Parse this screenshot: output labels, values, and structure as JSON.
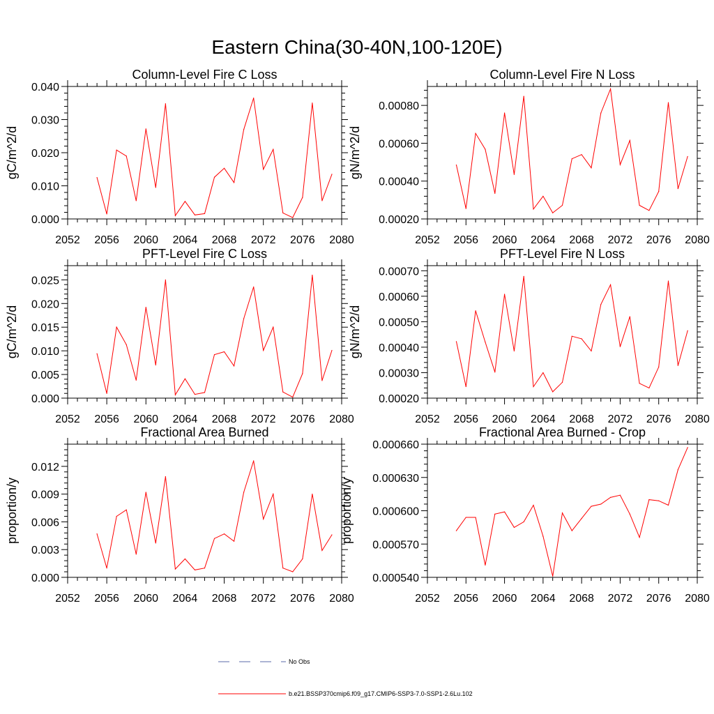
{
  "title": "Eastern China(30-40N,100-120E)",
  "chart_data": [
    {
      "type": "line",
      "title": "Column-Level Fire C Loss",
      "ylabel": "gC/m^2/d",
      "xlim": [
        2052,
        2080
      ],
      "ylim": [
        0,
        0.04
      ],
      "xticks": [
        "2052",
        "2056",
        "2060",
        "2064",
        "2068",
        "2072",
        "2076",
        "2080"
      ],
      "yticks": [
        "0.000",
        "0.010",
        "0.020",
        "0.030",
        "0.040"
      ],
      "series": [
        {
          "color": "#ff0000",
          "x": [
            2055,
            2056,
            2057,
            2058,
            2059,
            2060,
            2061,
            2062,
            2063,
            2064,
            2065,
            2066,
            2067,
            2068,
            2069,
            2070,
            2071,
            2072,
            2073,
            2074,
            2075,
            2076,
            2077,
            2078,
            2079
          ],
          "values": [
            0.0125,
            0.0015,
            0.0208,
            0.019,
            0.0055,
            0.0272,
            0.0095,
            0.0348,
            0.001,
            0.0053,
            0.0012,
            0.0016,
            0.0126,
            0.0153,
            0.011,
            0.027,
            0.0365,
            0.015,
            0.021,
            0.0018,
            0.0004,
            0.0065,
            0.035,
            0.0055,
            0.0135
          ]
        }
      ]
    },
    {
      "type": "line",
      "title": "Column-Level Fire N Loss",
      "ylabel": "gN/m^2/d",
      "xlim": [
        2052,
        2080
      ],
      "ylim": [
        0.0002,
        0.0009
      ],
      "xticks": [
        "2052",
        "2056",
        "2060",
        "2064",
        "2068",
        "2072",
        "2076",
        "2080"
      ],
      "yticks": [
        "0.00020",
        "0.00040",
        "0.00060",
        "0.00080"
      ],
      "series": [
        {
          "color": "#ff0000",
          "x": [
            2055,
            2056,
            2057,
            2058,
            2059,
            2060,
            2061,
            2062,
            2063,
            2064,
            2065,
            2066,
            2067,
            2068,
            2069,
            2070,
            2071,
            2072,
            2073,
            2074,
            2075,
            2076,
            2077,
            2078,
            2079
          ],
          "values": [
            0.000485,
            0.000255,
            0.000652,
            0.000568,
            0.000335,
            0.00076,
            0.000435,
            0.000848,
            0.000252,
            0.00032,
            0.000232,
            0.000272,
            0.000518,
            0.00054,
            0.00047,
            0.00076,
            0.000887,
            0.000487,
            0.000615,
            0.000272,
            0.000245,
            0.000345,
            0.000815,
            0.00036,
            0.00053
          ]
        }
      ]
    },
    {
      "type": "line",
      "title": "PFT-Level Fire C Loss",
      "ylabel": "gC/m^2/d",
      "xlim": [
        2052,
        2080
      ],
      "ylim": [
        0,
        0.028
      ],
      "xticks": [
        "2052",
        "2056",
        "2060",
        "2064",
        "2068",
        "2072",
        "2076",
        "2080"
      ],
      "yticks": [
        "0.000",
        "0.005",
        "0.010",
        "0.015",
        "0.020",
        "0.025"
      ],
      "series": [
        {
          "color": "#ff0000",
          "x": [
            2055,
            2056,
            2057,
            2058,
            2059,
            2060,
            2061,
            2062,
            2063,
            2064,
            2065,
            2066,
            2067,
            2068,
            2069,
            2070,
            2071,
            2072,
            2073,
            2074,
            2075,
            2076,
            2077,
            2078,
            2079
          ],
          "values": [
            0.0094,
            0.001,
            0.015,
            0.0113,
            0.0038,
            0.0192,
            0.007,
            0.025,
            0.0007,
            0.0041,
            0.0008,
            0.0012,
            0.0092,
            0.0098,
            0.0068,
            0.0168,
            0.0235,
            0.0101,
            0.015,
            0.0013,
            0.0002,
            0.0052,
            0.026,
            0.0037,
            0.0101
          ]
        }
      ]
    },
    {
      "type": "line",
      "title": "PFT-Level Fire N Loss",
      "ylabel": "gN/m^2/d",
      "xlim": [
        2052,
        2080
      ],
      "ylim": [
        0.0002,
        0.00072
      ],
      "xticks": [
        "2052",
        "2056",
        "2060",
        "2064",
        "2068",
        "2072",
        "2076",
        "2080"
      ],
      "yticks": [
        "0.00020",
        "0.00030",
        "0.00040",
        "0.00050",
        "0.00060",
        "0.00070"
      ],
      "series": [
        {
          "color": "#ff0000",
          "x": [
            2055,
            2056,
            2057,
            2058,
            2059,
            2060,
            2061,
            2062,
            2063,
            2064,
            2065,
            2066,
            2067,
            2068,
            2069,
            2070,
            2071,
            2072,
            2073,
            2074,
            2075,
            2076,
            2077,
            2078,
            2079
          ],
          "values": [
            0.000422,
            0.000245,
            0.000543,
            0.00042,
            0.000302,
            0.000608,
            0.000385,
            0.000678,
            0.000245,
            0.0003,
            0.000225,
            0.000262,
            0.000443,
            0.000433,
            0.000385,
            0.000568,
            0.000645,
            0.000402,
            0.00052,
            0.000258,
            0.00024,
            0.000322,
            0.00066,
            0.000328,
            0.000465
          ]
        }
      ]
    },
    {
      "type": "line",
      "title": "Fractional Area Burned",
      "ylabel": "proportion/y",
      "xlim": [
        2052,
        2080
      ],
      "ylim": [
        0,
        0.0144
      ],
      "xticks": [
        "2052",
        "2056",
        "2060",
        "2064",
        "2068",
        "2072",
        "2076",
        "2080"
      ],
      "yticks": [
        "0.000",
        "0.003",
        "0.006",
        "0.009",
        "0.012"
      ],
      "series": [
        {
          "color": "#ff0000",
          "x": [
            2055,
            2056,
            2057,
            2058,
            2059,
            2060,
            2061,
            2062,
            2063,
            2064,
            2065,
            2066,
            2067,
            2068,
            2069,
            2070,
            2071,
            2072,
            2073,
            2074,
            2075,
            2076,
            2077,
            2078,
            2079
          ],
          "values": [
            0.0047,
            0.001,
            0.0066,
            0.0073,
            0.0025,
            0.0092,
            0.0037,
            0.0109,
            0.0009,
            0.002,
            0.0008,
            0.001,
            0.0042,
            0.0047,
            0.0039,
            0.0092,
            0.0126,
            0.0063,
            0.009,
            0.001,
            0.0006,
            0.002,
            0.009,
            0.0029,
            0.0046
          ]
        }
      ]
    },
    {
      "type": "line",
      "title": "Fractional Area Burned - Crop",
      "ylabel": "proportion/y",
      "xlim": [
        2052,
        2080
      ],
      "ylim": [
        0.00054,
        0.00066
      ],
      "xticks": [
        "2052",
        "2056",
        "2060",
        "2064",
        "2068",
        "2072",
        "2076",
        "2080"
      ],
      "yticks": [
        "0.000540",
        "0.000570",
        "0.000600",
        "0.000630",
        "0.000660"
      ],
      "series": [
        {
          "color": "#ff0000",
          "x": [
            2055,
            2056,
            2057,
            2058,
            2059,
            2060,
            2061,
            2062,
            2063,
            2064,
            2065,
            2066,
            2067,
            2068,
            2069,
            2070,
            2071,
            2072,
            2073,
            2074,
            2075,
            2076,
            2077,
            2078,
            2079
          ],
          "values": [
            0.000582,
            0.000594,
            0.000594,
            0.000551,
            0.000597,
            0.000599,
            0.000585,
            0.00059,
            0.000605,
            0.000577,
            0.000541,
            0.000598,
            0.000582,
            0.000593,
            0.000604,
            0.000606,
            0.000612,
            0.000614,
            0.000597,
            0.000576,
            0.00061,
            0.000609,
            0.000605,
            0.000637,
            0.000657
          ]
        }
      ]
    }
  ],
  "legend": [
    {
      "label": "No Obs",
      "style": "dashed",
      "color": "#5a6aaa"
    },
    {
      "label": "b.e21.BSSP370cmip6.f09_g17.CMIP6-SSP3-7.0-SSP1-2.6Lu.102",
      "style": "solid",
      "color": "#ff0000"
    }
  ]
}
